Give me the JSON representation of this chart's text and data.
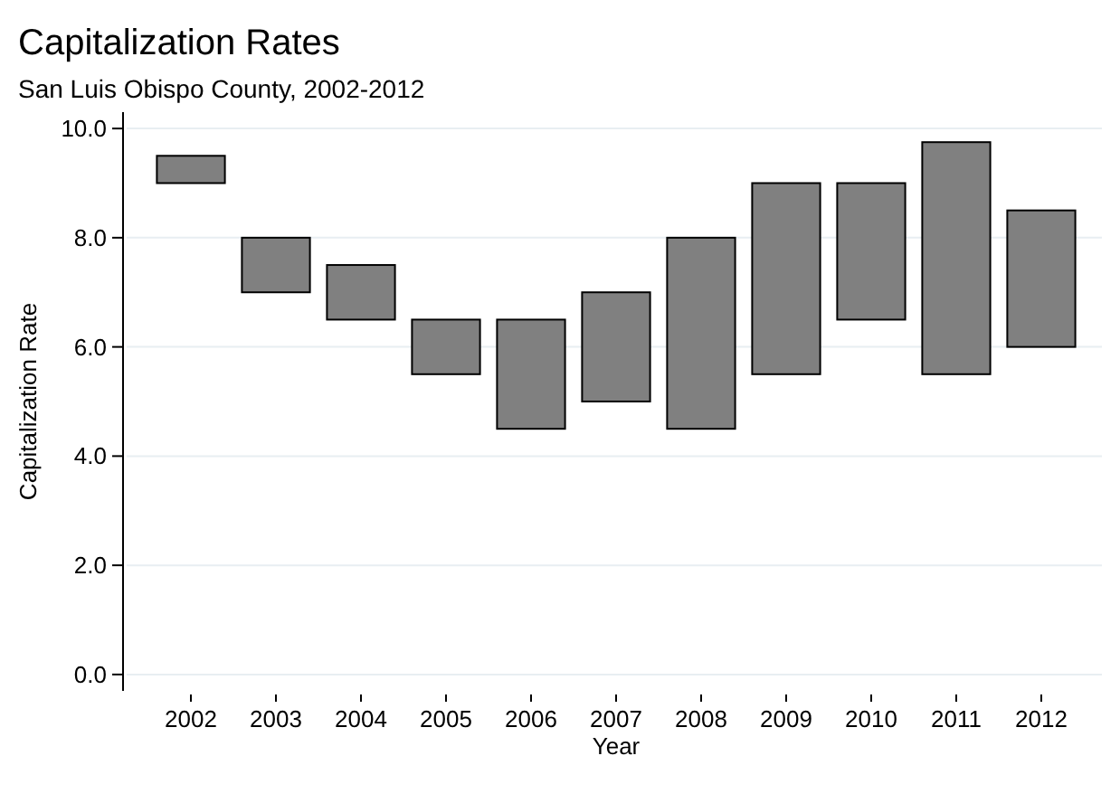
{
  "chart_data": {
    "type": "bar",
    "title": "Capitalization Rates",
    "subtitle": "San Luis Obispo County, 2002-2012",
    "xlabel": "Year",
    "ylabel": "Capitalization Rate",
    "categories": [
      "2002",
      "2003",
      "2004",
      "2005",
      "2006",
      "2007",
      "2008",
      "2009",
      "2010",
      "2011",
      "2012"
    ],
    "base": [
      9,
      7,
      6.5,
      5.5,
      4.5,
      5,
      4.5,
      5.5,
      6.5,
      5.5,
      6
    ],
    "values": [
      0.5,
      1,
      1,
      1,
      2,
      2,
      3.5,
      3.5,
      2.5,
      4.25,
      2.5
    ],
    "color": "#808080",
    "ylim": [
      -0.3,
      10.3
    ],
    "yticks": [
      {
        "value": 0,
        "label": "0.0"
      },
      {
        "value": 2,
        "label": "2.0"
      },
      {
        "value": 4,
        "label": "4.0"
      },
      {
        "value": 6,
        "label": "6.0"
      },
      {
        "value": 8,
        "label": "8.0"
      },
      {
        "value": 10,
        "label": "10.0"
      }
    ],
    "grid": "y"
  }
}
